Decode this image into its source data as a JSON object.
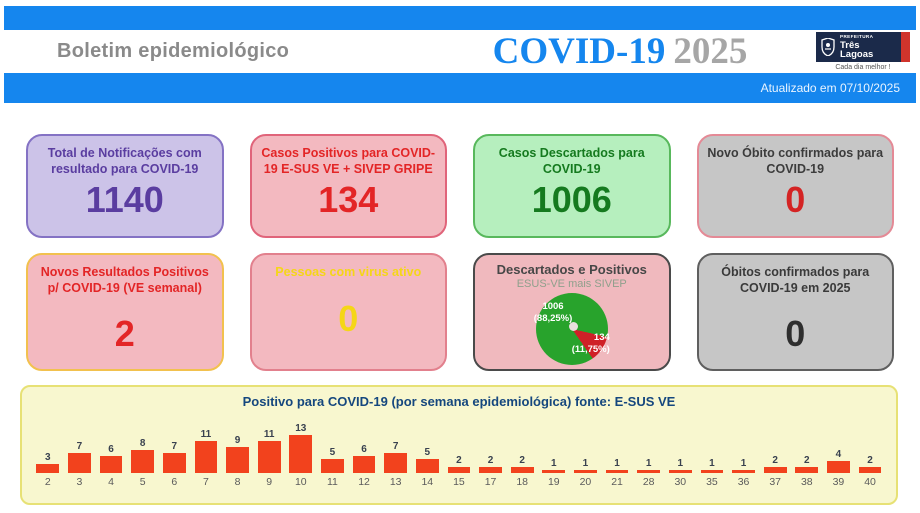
{
  "header": {
    "top_title": "Boletim epidemiológico",
    "main_title": "COVID-19",
    "year": "2025",
    "updated": "Atualizado em 07/10/2025",
    "accent_blue": "#1586ee",
    "logo": {
      "line1": "PREFEITURA",
      "line2": "Três",
      "line3": "Lagoas",
      "tagline": "Cada dia melhor !",
      "navy": "#1b2a4a",
      "red": "#d0342c"
    }
  },
  "stat_cards": [
    {
      "title": "Total de Notificações com resultado para COVID-19",
      "value": "1140",
      "bg": "#ccc3e8",
      "border": "#8472c4",
      "title_color": "#5a3da0",
      "value_color": "#5a3da0"
    },
    {
      "title": "Casos Positivos para COVID-19 E-SUS VE + SIVEP GRIPE",
      "value": "134",
      "bg": "#f3b9c0",
      "border": "#e0647a",
      "title_color": "#e32526",
      "value_color": "#e32526"
    },
    {
      "title": "Casos Descartados para COVID-19",
      "value": "1006",
      "bg": "#b6efbe",
      "border": "#58b85c",
      "title_color": "#157a1f",
      "value_color": "#157a1f"
    },
    {
      "title": "Novo Óbito confirmados para COVID-19",
      "value": "0",
      "bg": "#c6c6c6",
      "border": "#e48a96",
      "title_color": "#3c3c3c",
      "value_color": "#d42424"
    },
    {
      "title": "Novos Resultados Positivos p/ COVID-19 (VE semanal)",
      "value": "2",
      "bg": "#f3b9c0",
      "border": "#f2c14e",
      "title_color": "#e32526",
      "value_color": "#e32526"
    },
    {
      "title": "Pessoas com virus ativo",
      "value": "0",
      "bg": "#f3b9c0",
      "border": "#e2808d",
      "title_color": "#f5d617",
      "value_color": "#f5d617"
    },
    {
      "title": "Óbitos confirmados para COVID-19 em 2025",
      "value": "0",
      "bg": "#c6c6c6",
      "border": "#5f5f5f",
      "title_color": "#3a3a3a",
      "value_color": "#2e2e2e"
    }
  ],
  "pie_card_theme": {
    "bg": "#f0b9be",
    "border": "#4a4a4a",
    "title_color": "#474747",
    "subtitle_color": "#8fa08c"
  },
  "chart_data": [
    {
      "type": "bar",
      "title": "Positivo para COVID-19 (por semana epidemiológica) fonte: E-SUS VE",
      "xlabel": "",
      "ylabel": "",
      "categories": [
        "2",
        "3",
        "4",
        "5",
        "6",
        "7",
        "8",
        "9",
        "10",
        "11",
        "12",
        "13",
        "14",
        "15",
        "17",
        "18",
        "19",
        "20",
        "21",
        "28",
        "30",
        "35",
        "36",
        "37",
        "38",
        "39",
        "40"
      ],
      "values": [
        3,
        7,
        6,
        8,
        7,
        11,
        9,
        11,
        13,
        5,
        6,
        7,
        5,
        2,
        2,
        2,
        1,
        1,
        1,
        1,
        1,
        1,
        1,
        2,
        2,
        4,
        2
      ],
      "ylim": [
        0,
        13
      ],
      "grid": false,
      "legend": false,
      "bar_color": "#f2421d",
      "panel_bg": "#f8f7cf",
      "panel_border": "#e7e175",
      "title_color": "#15477e",
      "value_label_color": "#39414f",
      "tick_label_color": "#5b5b5b"
    },
    {
      "type": "pie",
      "title": "Descartados e Positivos",
      "subtitle": "ESUS-VE mais SIVEP",
      "rotation_deg": 145,
      "slices": [
        {
          "name": "Descartados",
          "value": 1006,
          "pct": 88.25,
          "label": "1006",
          "pct_label": "(88,25%)",
          "color": "#28a32c"
        },
        {
          "name": "Positivos",
          "value": 134,
          "pct": 11.75,
          "label": "134",
          "pct_label": "(11,75%)",
          "color": "#cf2127"
        }
      ]
    }
  ]
}
